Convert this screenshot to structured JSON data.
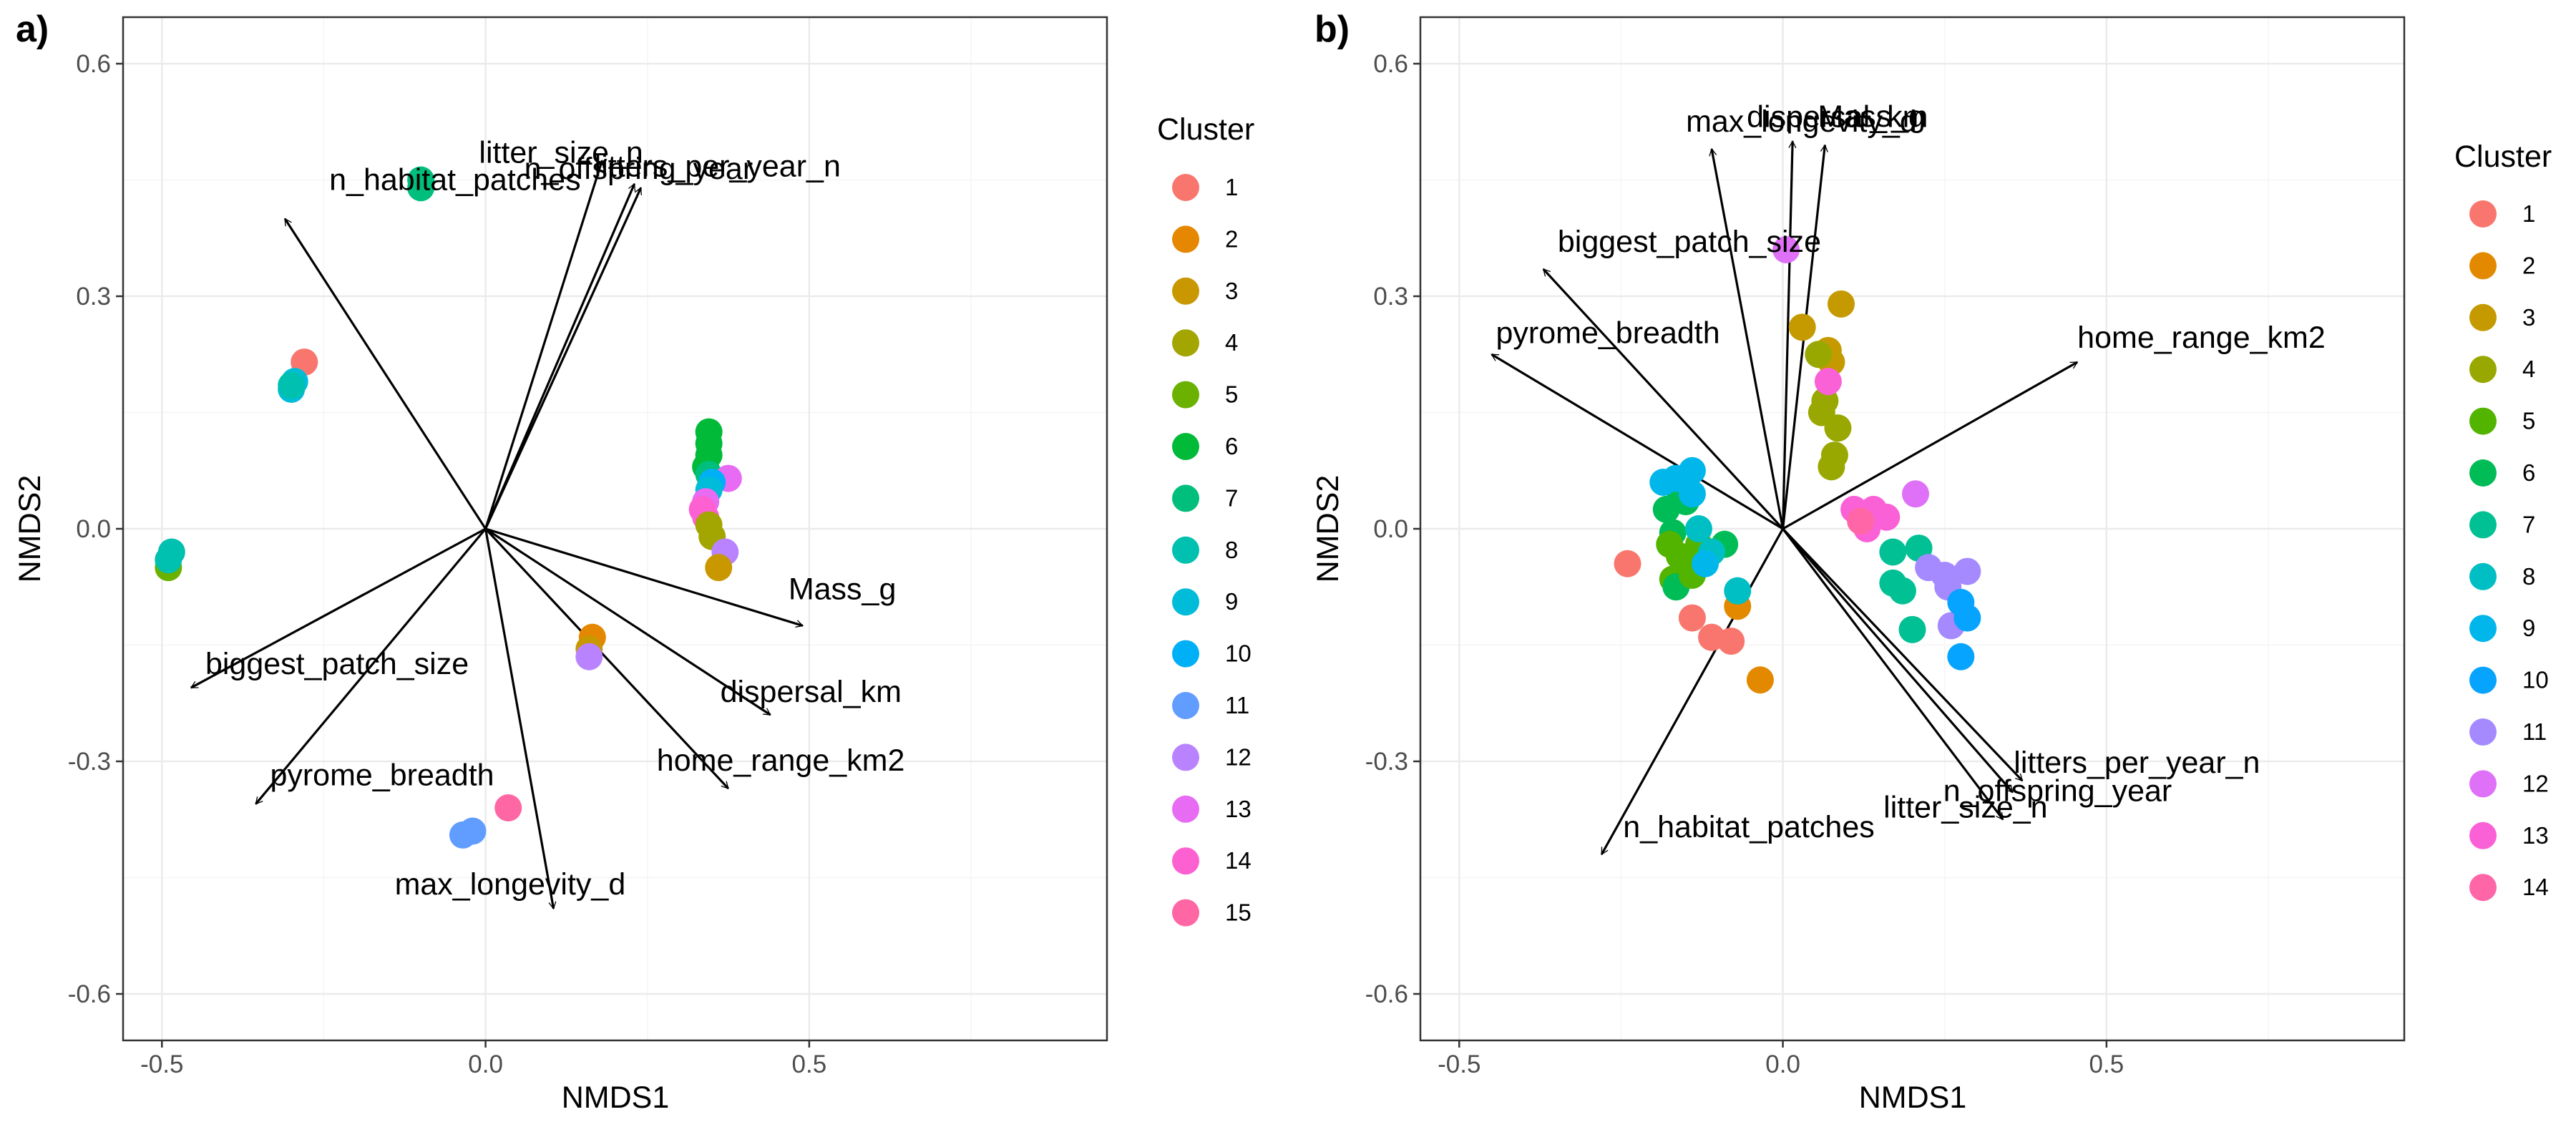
{
  "colors": {
    "clusters": [
      "#F8766D",
      "#E38900",
      "#C49A00",
      "#99A800",
      "#53B400",
      "#00BC56",
      "#00C094",
      "#00BFC4",
      "#00B6EB",
      "#06A4FF",
      "#A58AFF",
      "#DF70F8",
      "#FB61D7",
      "#FF66A8"
    ],
    "clusters15": [
      "#F8766D",
      "#E58700",
      "#C99800",
      "#A3A500",
      "#6BB100",
      "#00BA38",
      "#00BF7D",
      "#00C0AF",
      "#00BCD8",
      "#00B0F6",
      "#619CFF",
      "#B983FF",
      "#E76BF3",
      "#FD61D1",
      "#FF67A4"
    ],
    "arrow": "#000000",
    "grid_major": "#ebebeb",
    "grid_minor": "#f5f5f5",
    "panel_border": "#333333"
  },
  "chart_data": [
    {
      "panel_label": "a)",
      "type": "scatter",
      "xlabel": "NMDS1",
      "ylabel": "NMDS2",
      "xlim": [
        -0.56,
        0.96
      ],
      "ylim": [
        -0.66,
        0.66
      ],
      "xticks": [
        -0.5,
        0.0,
        0.5
      ],
      "xtick_labels": [
        "-0.5",
        "0.0",
        "0.5"
      ],
      "yticks": [
        -0.6,
        -0.3,
        0.0,
        0.3,
        0.6
      ],
      "ytick_labels": [
        "-0.6",
        "-0.3",
        "0.0",
        "0.3",
        "0.6"
      ],
      "grid": true,
      "legend": {
        "title": "Cluster",
        "placement": "right",
        "labels": [
          "1",
          "2",
          "3",
          "4",
          "5",
          "6",
          "7",
          "8",
          "9",
          "10",
          "11",
          "12",
          "13",
          "14",
          "15"
        ]
      },
      "points": [
        {
          "cluster": 1,
          "x": -0.28,
          "y": 0.215
        },
        {
          "cluster": 9,
          "x": -0.3,
          "y": 0.18
        },
        {
          "cluster": 9,
          "x": -0.295,
          "y": 0.19
        },
        {
          "cluster": 8,
          "x": -0.3,
          "y": 0.185
        },
        {
          "cluster": 7,
          "x": -0.1,
          "y": 0.45
        },
        {
          "cluster": 7,
          "x": -0.1,
          "y": 0.44
        },
        {
          "cluster": 5,
          "x": -0.49,
          "y": -0.05
        },
        {
          "cluster": 8,
          "x": -0.49,
          "y": -0.04
        },
        {
          "cluster": 8,
          "x": -0.485,
          "y": -0.03
        },
        {
          "cluster": 6,
          "x": 0.345,
          "y": 0.125
        },
        {
          "cluster": 6,
          "x": 0.345,
          "y": 0.11
        },
        {
          "cluster": 6,
          "x": 0.345,
          "y": 0.095
        },
        {
          "cluster": 6,
          "x": 0.34,
          "y": 0.08
        },
        {
          "cluster": 7,
          "x": 0.345,
          "y": 0.07
        },
        {
          "cluster": 13,
          "x": 0.375,
          "y": 0.065
        },
        {
          "cluster": 10,
          "x": 0.35,
          "y": 0.06
        },
        {
          "cluster": 9,
          "x": 0.345,
          "y": 0.05
        },
        {
          "cluster": 13,
          "x": 0.34,
          "y": 0.035
        },
        {
          "cluster": 14,
          "x": 0.335,
          "y": 0.025
        },
        {
          "cluster": 14,
          "x": 0.34,
          "y": 0.015
        },
        {
          "cluster": 4,
          "x": 0.345,
          "y": 0.005
        },
        {
          "cluster": 4,
          "x": 0.35,
          "y": -0.01
        },
        {
          "cluster": 12,
          "x": 0.37,
          "y": -0.03
        },
        {
          "cluster": 3,
          "x": 0.36,
          "y": -0.05
        },
        {
          "cluster": 2,
          "x": 0.165,
          "y": -0.14
        },
        {
          "cluster": 3,
          "x": 0.16,
          "y": -0.155
        },
        {
          "cluster": 12,
          "x": 0.16,
          "y": -0.165
        },
        {
          "cluster": 11,
          "x": -0.035,
          "y": -0.395
        },
        {
          "cluster": 11,
          "x": -0.02,
          "y": -0.39
        },
        {
          "cluster": 15,
          "x": 0.035,
          "y": -0.36
        }
      ],
      "vectors": [
        {
          "label": "litter_size_n",
          "x": 0.18,
          "y": 0.475
        },
        {
          "label": "n_offspring_year",
          "x": 0.23,
          "y": 0.445
        },
        {
          "label": "litters_per_year_n",
          "x": 0.24,
          "y": 0.44
        },
        {
          "label": "n_habitat_patches",
          "x": -0.31,
          "y": 0.4
        },
        {
          "label": "Mass_g",
          "x": 0.49,
          "y": -0.125
        },
        {
          "label": "dispersal_km",
          "x": 0.44,
          "y": -0.24
        },
        {
          "label": "home_range_km2",
          "x": 0.375,
          "y": -0.335
        },
        {
          "label": "biggest_patch_size",
          "x": -0.455,
          "y": -0.205
        },
        {
          "label": "pyrome_breadth",
          "x": -0.355,
          "y": -0.355
        },
        {
          "label": "max_longevity_d",
          "x": 0.105,
          "y": -0.49
        }
      ]
    },
    {
      "panel_label": "b)",
      "type": "scatter",
      "xlabel": "NMDS1",
      "ylabel": "NMDS2",
      "xlim": [
        -0.56,
        0.96
      ],
      "ylim": [
        -0.66,
        0.66
      ],
      "xticks": [
        -0.5,
        0.0,
        0.5
      ],
      "xtick_labels": [
        "-0.5",
        "0.0",
        "0.5"
      ],
      "yticks": [
        -0.6,
        -0.3,
        0.0,
        0.3,
        0.6
      ],
      "ytick_labels": [
        "-0.6",
        "-0.3",
        "0.0",
        "0.3",
        "0.6"
      ],
      "grid": true,
      "legend": {
        "title": "Cluster",
        "placement": "right",
        "labels": [
          "1",
          "2",
          "3",
          "4",
          "5",
          "6",
          "7",
          "8",
          "9",
          "10",
          "11",
          "12",
          "13",
          "14"
        ]
      },
      "points": [
        {
          "cluster": 1,
          "x": -0.24,
          "y": -0.045
        },
        {
          "cluster": 1,
          "x": -0.14,
          "y": -0.115
        },
        {
          "cluster": 1,
          "x": -0.11,
          "y": -0.14
        },
        {
          "cluster": 1,
          "x": -0.08,
          "y": -0.145
        },
        {
          "cluster": 2,
          "x": -0.07,
          "y": -0.1
        },
        {
          "cluster": 2,
          "x": -0.035,
          "y": -0.195
        },
        {
          "cluster": 3,
          "x": 0.03,
          "y": 0.26
        },
        {
          "cluster": 3,
          "x": 0.09,
          "y": 0.29
        },
        {
          "cluster": 3,
          "x": 0.07,
          "y": 0.23
        },
        {
          "cluster": 3,
          "x": 0.075,
          "y": 0.215
        },
        {
          "cluster": 4,
          "x": 0.055,
          "y": 0.225
        },
        {
          "cluster": 4,
          "x": 0.065,
          "y": 0.165
        },
        {
          "cluster": 4,
          "x": 0.06,
          "y": 0.15
        },
        {
          "cluster": 4,
          "x": 0.085,
          "y": 0.13
        },
        {
          "cluster": 4,
          "x": 0.08,
          "y": 0.095
        },
        {
          "cluster": 4,
          "x": 0.075,
          "y": 0.08
        },
        {
          "cluster": 12,
          "x": 0.005,
          "y": 0.36
        },
        {
          "cluster": 13,
          "x": 0.07,
          "y": 0.19
        },
        {
          "cluster": 6,
          "x": -0.18,
          "y": 0.025
        },
        {
          "cluster": 6,
          "x": -0.17,
          "y": -0.005
        },
        {
          "cluster": 5,
          "x": -0.175,
          "y": -0.02
        },
        {
          "cluster": 5,
          "x": -0.16,
          "y": -0.035
        },
        {
          "cluster": 5,
          "x": -0.15,
          "y": -0.05
        },
        {
          "cluster": 5,
          "x": -0.17,
          "y": -0.065
        },
        {
          "cluster": 6,
          "x": -0.165,
          "y": -0.075
        },
        {
          "cluster": 5,
          "x": -0.14,
          "y": -0.06
        },
        {
          "cluster": 5,
          "x": -0.13,
          "y": -0.02
        },
        {
          "cluster": 6,
          "x": -0.16,
          "y": 0.05
        },
        {
          "cluster": 6,
          "x": -0.15,
          "y": 0.035
        },
        {
          "cluster": 6,
          "x": -0.09,
          "y": -0.02
        },
        {
          "cluster": 9,
          "x": -0.185,
          "y": 0.06
        },
        {
          "cluster": 9,
          "x": -0.165,
          "y": 0.065
        },
        {
          "cluster": 9,
          "x": -0.14,
          "y": 0.075
        },
        {
          "cluster": 9,
          "x": -0.14,
          "y": 0.045
        },
        {
          "cluster": 8,
          "x": -0.13,
          "y": 0.0
        },
        {
          "cluster": 8,
          "x": -0.11,
          "y": -0.03
        },
        {
          "cluster": 8,
          "x": -0.07,
          "y": -0.08
        },
        {
          "cluster": 9,
          "x": -0.12,
          "y": -0.045
        },
        {
          "cluster": 13,
          "x": 0.11,
          "y": 0.025
        },
        {
          "cluster": 13,
          "x": 0.14,
          "y": 0.025
        },
        {
          "cluster": 13,
          "x": 0.13,
          "y": 0.0
        },
        {
          "cluster": 13,
          "x": 0.16,
          "y": 0.015
        },
        {
          "cluster": 14,
          "x": 0.12,
          "y": 0.01
        },
        {
          "cluster": 12,
          "x": 0.205,
          "y": 0.045
        },
        {
          "cluster": 7,
          "x": 0.17,
          "y": -0.03
        },
        {
          "cluster": 7,
          "x": 0.21,
          "y": -0.025
        },
        {
          "cluster": 7,
          "x": 0.17,
          "y": -0.07
        },
        {
          "cluster": 7,
          "x": 0.185,
          "y": -0.08
        },
        {
          "cluster": 7,
          "x": 0.2,
          "y": -0.13
        },
        {
          "cluster": 11,
          "x": 0.225,
          "y": -0.05
        },
        {
          "cluster": 11,
          "x": 0.25,
          "y": -0.06
        },
        {
          "cluster": 11,
          "x": 0.285,
          "y": -0.055
        },
        {
          "cluster": 11,
          "x": 0.255,
          "y": -0.075
        },
        {
          "cluster": 11,
          "x": 0.26,
          "y": -0.125
        },
        {
          "cluster": 10,
          "x": 0.275,
          "y": -0.095
        },
        {
          "cluster": 10,
          "x": 0.285,
          "y": -0.115
        },
        {
          "cluster": 10,
          "x": 0.275,
          "y": -0.165
        }
      ],
      "vectors": [
        {
          "label": "dispersal_km",
          "x": 0.015,
          "y": 0.5
        },
        {
          "label": "Mass_g",
          "x": 0.065,
          "y": 0.495
        },
        {
          "label": "max_longevity_d",
          "x": -0.11,
          "y": 0.49
        },
        {
          "label": "biggest_patch_size",
          "x": -0.37,
          "y": 0.335
        },
        {
          "label": "pyrome_breadth",
          "x": -0.45,
          "y": 0.225
        },
        {
          "label": "home_range_km2",
          "x": 0.455,
          "y": 0.215
        },
        {
          "label": "litters_per_year_n",
          "x": 0.37,
          "y": -0.325
        },
        {
          "label": "n_offspring_year",
          "x": 0.355,
          "y": -0.34
        },
        {
          "label": "litter_size_n",
          "x": 0.34,
          "y": -0.375
        },
        {
          "label": "n_habitat_patches",
          "x": -0.28,
          "y": -0.42
        }
      ]
    }
  ]
}
